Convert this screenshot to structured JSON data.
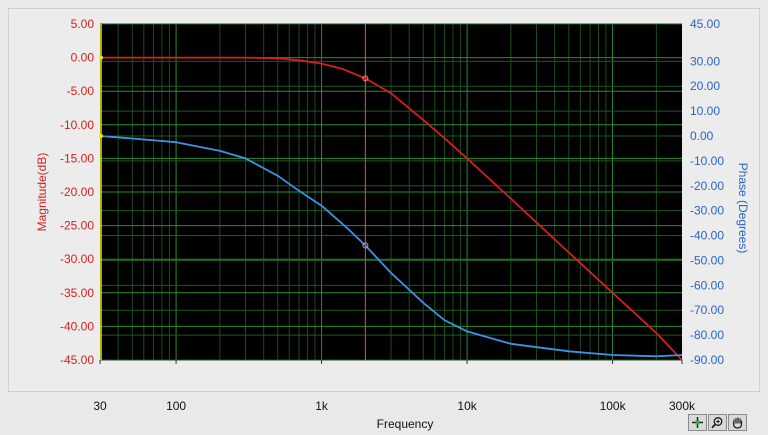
{
  "chart_data": {
    "type": "line",
    "xlabel": "Frequency",
    "ylabel": "Magnitude(dB)",
    "y2label": "Phase (Degrees)",
    "x_scale": "log",
    "xlim": [
      30,
      300000
    ],
    "ylim": [
      -45,
      5
    ],
    "y2lim": [
      -90,
      45
    ],
    "grid": true,
    "background": "#000000",
    "x_ticks": [
      {
        "value": 30,
        "label": "30"
      },
      {
        "value": 100,
        "label": "100"
      },
      {
        "value": 1000,
        "label": "1k"
      },
      {
        "value": 10000,
        "label": "10k"
      },
      {
        "value": 100000,
        "label": "100k"
      },
      {
        "value": 300000,
        "label": "300k"
      }
    ],
    "y_ticks": [
      {
        "value": 5,
        "label": "5.00"
      },
      {
        "value": 0,
        "label": "0.00"
      },
      {
        "value": -5,
        "label": "-5.00"
      },
      {
        "value": -10,
        "label": "-10.00"
      },
      {
        "value": -15,
        "label": "-15.00"
      },
      {
        "value": -20,
        "label": "-20.00"
      },
      {
        "value": -25,
        "label": "-25.00"
      },
      {
        "value": -30,
        "label": "-30.00"
      },
      {
        "value": -35,
        "label": "-35.00"
      },
      {
        "value": -40,
        "label": "-40.00"
      },
      {
        "value": -45,
        "label": "-45.00"
      }
    ],
    "y2_ticks": [
      {
        "value": 45,
        "label": "45.00"
      },
      {
        "value": 30,
        "label": "30.00"
      },
      {
        "value": 20,
        "label": "20.00"
      },
      {
        "value": 10,
        "label": "10.00"
      },
      {
        "value": 0,
        "label": "0.00"
      },
      {
        "value": -10,
        "label": "-10.00"
      },
      {
        "value": -20,
        "label": "-20.00"
      },
      {
        "value": -30,
        "label": "-30.00"
      },
      {
        "value": -40,
        "label": "-40.00"
      },
      {
        "value": -50,
        "label": "-50.00"
      },
      {
        "value": -60,
        "label": "-60.00"
      },
      {
        "value": -70,
        "label": "-70.00"
      },
      {
        "value": -80,
        "label": "-80.00"
      },
      {
        "value": -90,
        "label": "-90.00"
      }
    ],
    "cursor": {
      "x": 2000,
      "color": "#ff3a3a"
    },
    "left_cursor": {
      "x": 30,
      "color": "#e8e800"
    },
    "series": [
      {
        "axis": "left",
        "color": "#d81e1e",
        "x": [
          30,
          100,
          200,
          300,
          500,
          700,
          1000,
          1400,
          2000,
          3000,
          5000,
          7000,
          10000,
          20000,
          50000,
          100000,
          200000,
          300000
        ],
        "y": [
          0,
          0,
          0,
          0,
          -0.1,
          -0.4,
          -0.9,
          -1.7,
          -3.1,
          -5.3,
          -9.3,
          -12.0,
          -15.0,
          -21.0,
          -29.0,
          -35.0,
          -41.0,
          -45.0
        ]
      },
      {
        "axis": "right",
        "color": "#3c93e6",
        "x": [
          30,
          50,
          100,
          200,
          300,
          500,
          700,
          1000,
          1500,
          2000,
          3000,
          5000,
          7000,
          10000,
          20000,
          50000,
          100000,
          200000,
          300000
        ],
        "y": [
          0,
          -1,
          -2.5,
          -6,
          -9,
          -16,
          -22,
          -28,
          -37,
          -44,
          -55,
          -67,
          -74,
          -78.5,
          -83.5,
          -86.5,
          -88,
          -88.5,
          -88
        ]
      }
    ]
  },
  "toolbar": {
    "buttons": [
      "cursor-move-icon",
      "zoom-icon",
      "pan-hand-icon"
    ]
  }
}
